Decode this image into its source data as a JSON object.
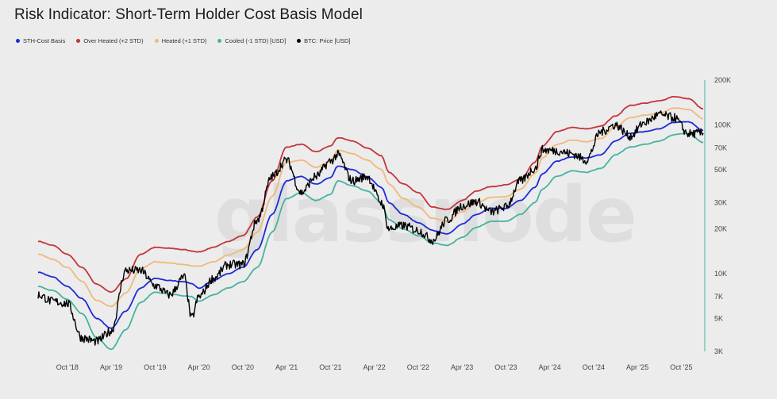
{
  "title": "Risk Indicator: Short-Term Holder Cost Basis Model",
  "watermark": "glassnode",
  "legend": [
    {
      "label": "STH-Cost Basis",
      "color": "#1f2bd6"
    },
    {
      "label": "Over Heated (+2 STD)",
      "color": "#c4343d"
    },
    {
      "label": "Heated (+1 STD)",
      "color": "#f0b978"
    },
    {
      "label": "Cooled (-1 STD) [USD]",
      "color": "#45b3a0"
    },
    {
      "label": "BTC: Price [USD]",
      "color": "#000000"
    }
  ],
  "chart_data": {
    "type": "line",
    "title": "Risk Indicator: Short-Term Holder Cost Basis Model",
    "y_scale": "log",
    "ylim": [
      3000,
      200000
    ],
    "xlim": [
      "2018-06",
      "2026-01"
    ],
    "x_tick_labels": [
      "Oct '18",
      "Apr '19",
      "Oct '19",
      "Apr '20",
      "Oct '20",
      "Apr '21",
      "Oct '21",
      "Apr '22",
      "Oct '22",
      "Apr '23",
      "Oct '23",
      "Apr '24",
      "Oct '24",
      "Apr '25",
      "Oct '25"
    ],
    "x_ticks": [
      "2018-10",
      "2019-04",
      "2019-10",
      "2020-04",
      "2020-10",
      "2021-04",
      "2021-10",
      "2022-04",
      "2022-10",
      "2023-04",
      "2023-10",
      "2024-04",
      "2024-10",
      "2025-04",
      "2025-10"
    ],
    "y_tick_labels": [
      "3K",
      "5K",
      "7K",
      "10K",
      "20K",
      "30K",
      "50K",
      "70K",
      "100K",
      "200K"
    ],
    "y_ticks": [
      3000,
      5000,
      7000,
      10000,
      20000,
      30000,
      50000,
      70000,
      100000,
      200000
    ],
    "grid": false,
    "legend_position": "top-left",
    "x": [
      "2018-06",
      "2018-08",
      "2018-10",
      "2018-12",
      "2019-02",
      "2019-04",
      "2019-06",
      "2019-08",
      "2019-10",
      "2019-12",
      "2020-02",
      "2020-03",
      "2020-04",
      "2020-06",
      "2020-08",
      "2020-10",
      "2020-12",
      "2021-02",
      "2021-04",
      "2021-06",
      "2021-08",
      "2021-10",
      "2021-11",
      "2022-01",
      "2022-03",
      "2022-05",
      "2022-06",
      "2022-08",
      "2022-10",
      "2022-12",
      "2023-02",
      "2023-04",
      "2023-06",
      "2023-08",
      "2023-10",
      "2023-12",
      "2024-02",
      "2024-03",
      "2024-05",
      "2024-07",
      "2024-09",
      "2024-11",
      "2025-01",
      "2025-03",
      "2025-05",
      "2025-07",
      "2025-09",
      "2025-11",
      "2026-01"
    ],
    "series": [
      {
        "name": "STH-Cost Basis",
        "color": "#1f2bd6",
        "values": [
          10200,
          9500,
          8200,
          6800,
          5000,
          4300,
          5600,
          8000,
          9300,
          9000,
          8800,
          8600,
          8000,
          9000,
          10000,
          11000,
          14500,
          25000,
          42000,
          45000,
          40000,
          44000,
          53000,
          50000,
          45000,
          38000,
          30000,
          25000,
          22000,
          19500,
          18500,
          21500,
          25000,
          27500,
          27500,
          31000,
          38000,
          47000,
          57000,
          61000,
          60000,
          63000,
          78000,
          88000,
          90000,
          94000,
          104000,
          105000,
          92000
        ]
      },
      {
        "name": "Over Heated (+2 STD)",
        "color": "#c4343d",
        "values": [
          16500,
          15500,
          13500,
          11000,
          8500,
          7500,
          9200,
          13500,
          15000,
          14800,
          14500,
          14200,
          14000,
          15000,
          16500,
          18000,
          24000,
          42000,
          71000,
          74000,
          66000,
          72000,
          82000,
          78000,
          70000,
          62000,
          48000,
          40000,
          35000,
          28000,
          27000,
          31000,
          36000,
          38500,
          39500,
          43000,
          56000,
          72000,
          90000,
          96000,
          94000,
          98000,
          115000,
          135000,
          140000,
          145000,
          155000,
          150000,
          128000
        ]
      },
      {
        "name": "Heated (+1 STD)",
        "color": "#f0b978",
        "values": [
          13500,
          12500,
          11000,
          8900,
          6600,
          6000,
          7400,
          10800,
          12000,
          11800,
          11500,
          11300,
          11200,
          12000,
          13300,
          14500,
          19000,
          33000,
          56000,
          58000,
          52000,
          57000,
          68000,
          64000,
          58000,
          50000,
          40000,
          32000,
          28000,
          23500,
          22500,
          26000,
          30000,
          32500,
          33000,
          37000,
          47000,
          60000,
          74000,
          79000,
          77000,
          81000,
          97000,
          112000,
          116000,
          120000,
          130000,
          127000,
          110000
        ]
      },
      {
        "name": "Cooled (-1 STD) [USD]",
        "color": "#45b3a0",
        "values": [
          8200,
          7700,
          6700,
          5400,
          3700,
          3100,
          4200,
          6400,
          7500,
          7300,
          7100,
          7000,
          6500,
          7200,
          8000,
          8800,
          11000,
          19000,
          32000,
          35000,
          31000,
          34000,
          42000,
          39000,
          36000,
          30000,
          23000,
          20000,
          18000,
          16000,
          15500,
          17500,
          20500,
          22500,
          22500,
          25000,
          30000,
          37000,
          45000,
          49000,
          48000,
          51000,
          63000,
          71000,
          74000,
          78000,
          86000,
          88000,
          76000
        ]
      },
      {
        "name": "BTC: Price [USD]",
        "color": "#000000",
        "values": [
          7200,
          6500,
          6300,
          3700,
          3500,
          4100,
          10500,
          10500,
          8300,
          7200,
          9500,
          5000,
          7000,
          9300,
          11500,
          11500,
          23000,
          45000,
          58000,
          35000,
          45000,
          57000,
          63000,
          42000,
          45000,
          30000,
          20000,
          21000,
          19500,
          16800,
          23000,
          28500,
          30500,
          26000,
          28000,
          42000,
          51000,
          68000,
          67000,
          64000,
          58000,
          90000,
          100000,
          84000,
          104000,
          117000,
          112000,
          87000,
          88000
        ]
      }
    ]
  }
}
